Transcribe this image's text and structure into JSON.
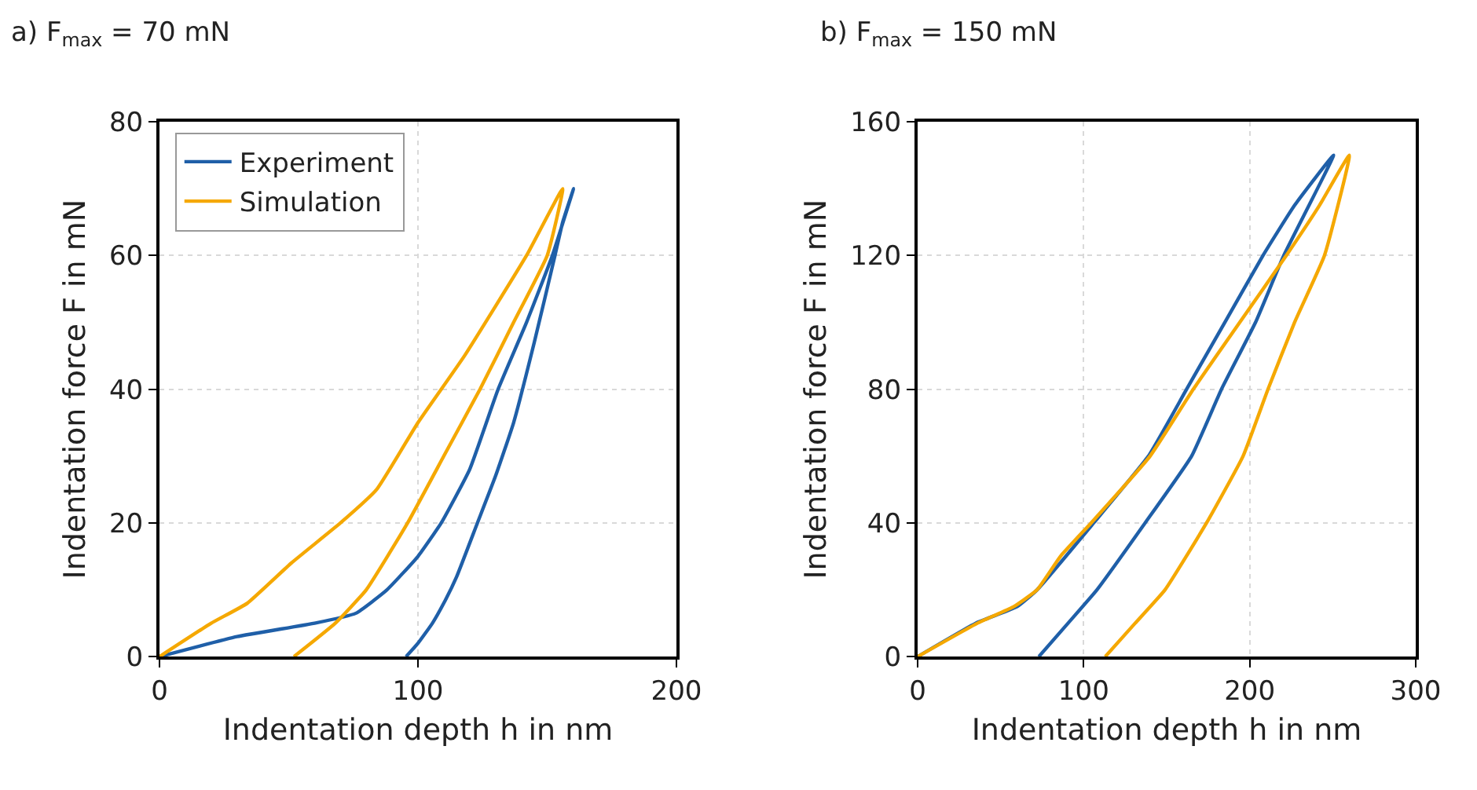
{
  "chart_data": [
    {
      "type": "line",
      "title": "a) F$_{max}$ = 70 mN",
      "xlabel": "Indentation depth h in nm",
      "ylabel": "Indentation force F in mN",
      "xlim": [
        0,
        200
      ],
      "xticks": [
        0,
        100,
        200
      ],
      "ylim": [
        0,
        80
      ],
      "yticks": [
        0,
        20,
        40,
        60,
        80
      ],
      "grid": true,
      "legend": "top left",
      "line_style": "solid",
      "marker": "none",
      "series": [
        {
          "name": "Experiment",
          "color": "#1f5fa8",
          "x": [
            0,
            30,
            60,
            76,
            88,
            100,
            109,
            120,
            131,
            142,
            152,
            160.2,
            156,
            153,
            145,
            137,
            130,
            123,
            115,
            110,
            105.6,
            100,
            95.4
          ],
          "values": [
            0,
            3,
            5,
            6.5,
            10,
            15,
            20,
            28,
            40,
            50,
            60,
            70,
            65,
            60,
            47,
            35,
            27,
            20,
            12,
            8,
            5,
            2,
            0
          ]
        },
        {
          "name": "Simulation",
          "color": "#f5a800",
          "x": [
            0,
            20,
            34,
            51,
            70,
            84,
            100,
            118,
            142,
            156,
            150,
            137,
            124,
            110,
            96,
            80,
            68,
            52
          ],
          "values": [
            0,
            5,
            8,
            14,
            20,
            25,
            35,
            45,
            60,
            70,
            60,
            50,
            40,
            30,
            20,
            10,
            5,
            0
          ]
        }
      ]
    },
    {
      "type": "line",
      "title": "b) F$_{max}$ = 150 mN",
      "xlabel": "Indentation depth h in nm",
      "ylabel": "Indentation force F in mN",
      "xlim": [
        0,
        300
      ],
      "xticks": [
        0,
        100,
        200,
        300
      ],
      "ylim": [
        0,
        160
      ],
      "yticks": [
        0,
        40,
        80,
        120,
        160
      ],
      "grid": true,
      "legend": false,
      "line_style": "solid",
      "marker": "none",
      "series": [
        {
          "color": "#1f5fa8",
          "x": [
            0,
            35,
            60,
            72,
            106,
            139,
            162,
            185,
            208,
            227,
            250.5,
            220.5,
            203.5,
            183,
            165,
            137,
            108,
            90.6,
            73
          ],
          "values": [
            0,
            10,
            15,
            20,
            40,
            60,
            80,
            100,
            120,
            135,
            150,
            120,
            100,
            80,
            60,
            40,
            20,
            10,
            0
          ]
        },
        {
          "color": "#f5a800",
          "x": [
            0,
            36,
            58,
            72,
            86,
            104.5,
            140,
            166,
            194,
            222,
            242,
            260,
            245,
            227,
            211,
            196,
            174,
            149,
            131,
            113
          ],
          "values": [
            0,
            10,
            15,
            20,
            30,
            40,
            60,
            80,
            100,
            120,
            135,
            150,
            120,
            100,
            80,
            60,
            40,
            20,
            10,
            0
          ]
        }
      ]
    }
  ]
}
